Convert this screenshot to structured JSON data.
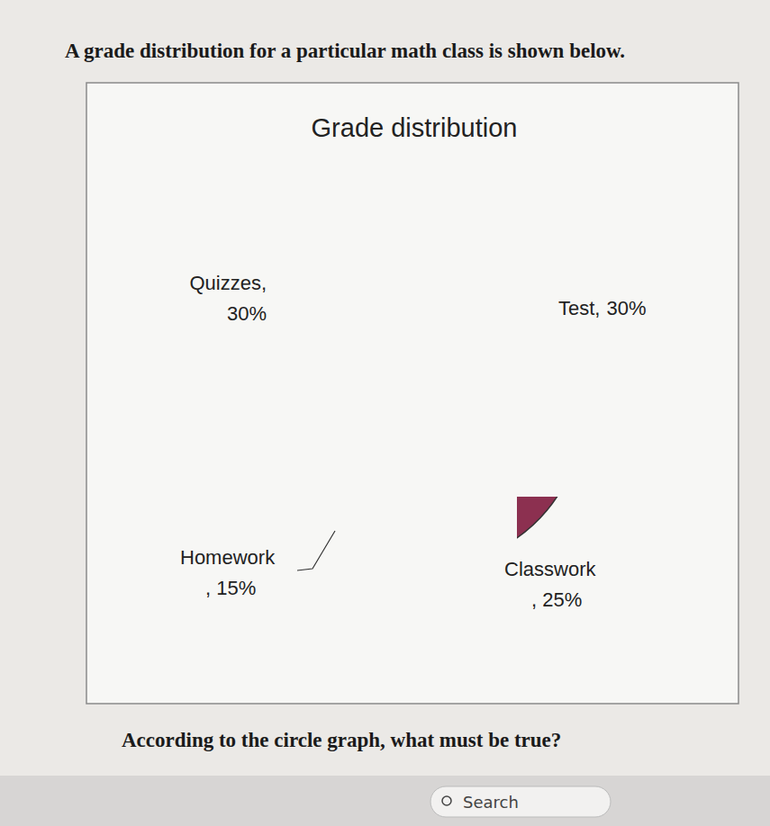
{
  "chart_data": {
    "type": "pie",
    "title": "Grade distribution",
    "categories": [
      "Test,",
      "Classwork",
      "Homework",
      "Quizzes,"
    ],
    "values": [
      30,
      25,
      15,
      30
    ],
    "value_labels": [
      "30%",
      ", 25%",
      ", 15%",
      "30%"
    ],
    "colors": [
      "#6b80e6",
      "#8c3050",
      "#f7f5c4",
      "#bfe9ef"
    ],
    "data_labels": true,
    "annotations": [
      "A grade distribution for a particular math class is shown below.",
      "According to the circle graph, what must be true?",
      "Search"
    ]
  }
}
